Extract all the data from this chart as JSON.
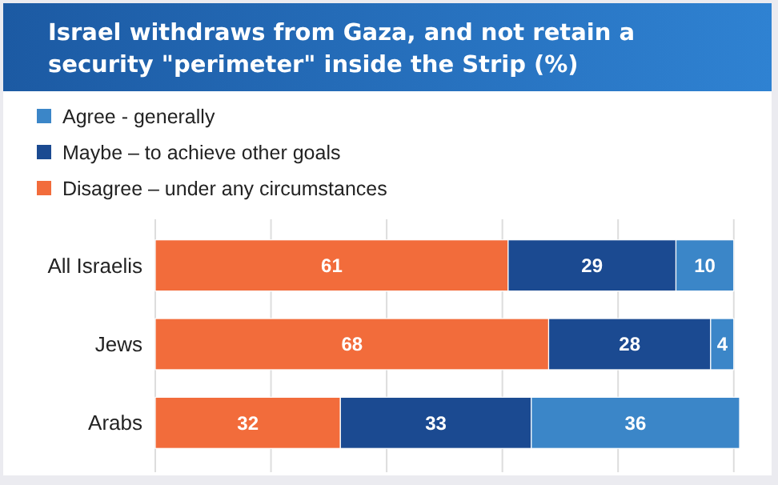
{
  "chart_data": {
    "type": "bar",
    "orientation": "horizontal",
    "stacked": true,
    "title": "Israel withdraws from Gaza, and not retain a security \"perimeter\" inside the Strip (%)",
    "categories": [
      "All Israelis",
      "Jews",
      "Arabs"
    ],
    "series": [
      {
        "name": "Disagree – under any circumstances",
        "color": "#f26c3b",
        "values": [
          61,
          68,
          32
        ]
      },
      {
        "name": "Maybe – to achieve other goals",
        "color": "#1b4a91",
        "values": [
          29,
          28,
          33
        ]
      },
      {
        "name": "Agree - generally",
        "color": "#3b86c8",
        "values": [
          10,
          4,
          36
        ]
      }
    ],
    "xlim": [
      0,
      101
    ],
    "xticks": [
      {
        "value": 0,
        "label": null
      },
      {
        "value": 20,
        "label": null
      },
      {
        "value": 40,
        "label": null
      },
      {
        "value": 60,
        "label": null
      },
      {
        "value": 80,
        "label": null
      },
      {
        "value": 100,
        "label": null
      }
    ],
    "tick_labels": "y",
    "grid": "x",
    "legend": "top left",
    "data_labels": true
  }
}
